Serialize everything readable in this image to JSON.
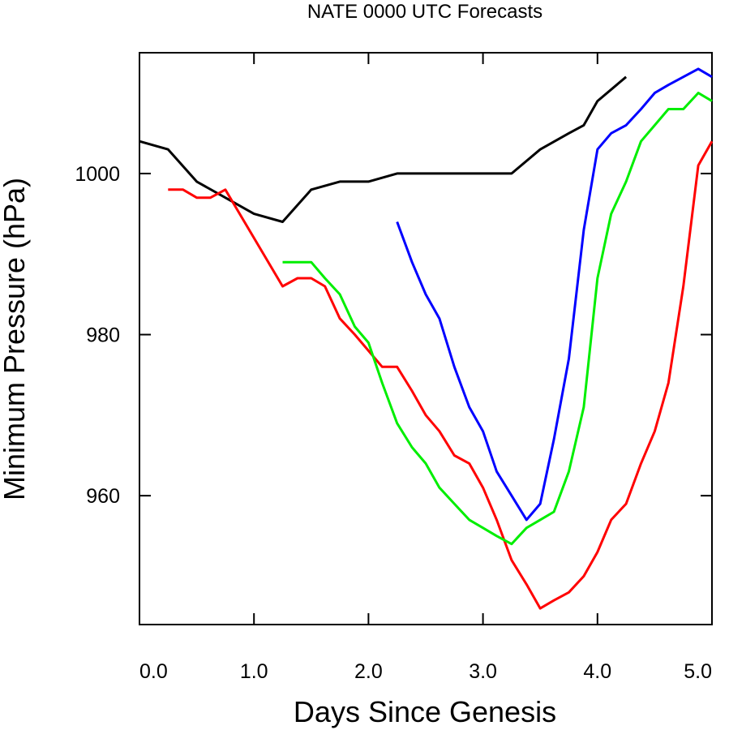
{
  "chart_data": {
    "type": "line",
    "title": "NATE 0000 UTC Forecasts",
    "xlabel": "Days Since Genesis",
    "ylabel": "Minimum Pressure (hPa)",
    "xlim": [
      0,
      5
    ],
    "ylim": [
      944,
      1015
    ],
    "x_ticks": [
      "0.0",
      "1.0",
      "2.0",
      "3.0",
      "4.0",
      "5.0"
    ],
    "x_tick_values": [
      0,
      1,
      2,
      3,
      4,
      5
    ],
    "y_ticks": [
      "960",
      "980",
      "1000"
    ],
    "y_tick_values": [
      960,
      980,
      1000
    ],
    "grid": false,
    "legend": "none",
    "series": [
      {
        "color": "#000000",
        "x": [
          0,
          0.25,
          0.5,
          0.75,
          1.0,
          1.25,
          1.5,
          1.75,
          2.0,
          2.25,
          2.5,
          2.75,
          3.0,
          3.25,
          3.5,
          3.75,
          3.88,
          4.0,
          4.25
        ],
        "y": [
          1004,
          1003,
          999,
          997,
          995,
          994,
          998,
          999,
          999,
          1000,
          1000,
          1000,
          1000,
          1000,
          1003,
          1005,
          1006,
          1009,
          1012
        ]
      },
      {
        "color": "#ff0000",
        "x": [
          0.25,
          0.38,
          0.5,
          0.62,
          0.75,
          1.0,
          1.25,
          1.38,
          1.5,
          1.62,
          1.75,
          1.88,
          2.0,
          2.12,
          2.25,
          2.38,
          2.5,
          2.62,
          2.75,
          2.88,
          3.0,
          3.12,
          3.25,
          3.38,
          3.5,
          3.62,
          3.75,
          3.88,
          4.0,
          4.12,
          4.25,
          4.38,
          4.5,
          4.62,
          4.75,
          4.88,
          5.0
        ],
        "y": [
          998,
          998,
          997,
          997,
          998,
          992,
          986,
          987,
          987,
          986,
          982,
          980,
          978,
          976,
          976,
          973,
          970,
          968,
          965,
          964,
          961,
          957,
          952,
          949,
          946,
          947,
          948,
          950,
          953,
          957,
          959,
          964,
          968,
          974,
          986,
          1001,
          1004
        ]
      },
      {
        "color": "#00ee00",
        "x": [
          1.25,
          1.5,
          1.62,
          1.75,
          1.88,
          2.0,
          2.12,
          2.25,
          2.38,
          2.5,
          2.62,
          2.75,
          2.88,
          3.0,
          3.12,
          3.25,
          3.38,
          3.5,
          3.62,
          3.75,
          3.88,
          4.0,
          4.12,
          4.25,
          4.38,
          4.5,
          4.62,
          4.75,
          4.88,
          5.0
        ],
        "y": [
          989,
          989,
          987,
          985,
          981,
          979,
          974,
          969,
          966,
          964,
          961,
          959,
          957,
          956,
          955,
          954,
          956,
          957,
          958,
          963,
          971,
          987,
          995,
          999,
          1004,
          1006,
          1008,
          1008,
          1010,
          1009
        ]
      },
      {
        "color": "#0000ff",
        "x": [
          2.25,
          2.38,
          2.5,
          2.62,
          2.75,
          2.88,
          3.0,
          3.12,
          3.25,
          3.38,
          3.5,
          3.62,
          3.75,
          3.88,
          4.0,
          4.12,
          4.25,
          4.38,
          4.5,
          4.62,
          4.75,
          4.88,
          5.0
        ],
        "y": [
          994,
          989,
          985,
          982,
          976,
          971,
          968,
          963,
          960,
          957,
          959,
          967,
          977,
          993,
          1003,
          1005,
          1006,
          1008,
          1010,
          1011,
          1012,
          1013,
          1012
        ]
      }
    ]
  }
}
